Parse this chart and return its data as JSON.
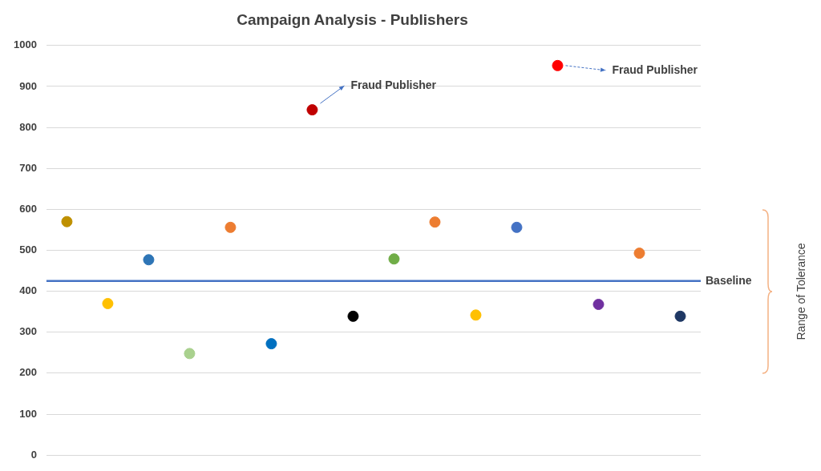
{
  "chart_data": {
    "type": "scatter",
    "title": "Campaign Analysis - Publishers",
    "categories": [
      null,
      null,
      null,
      null,
      null,
      null,
      null,
      null,
      null,
      null,
      null,
      null,
      null,
      null,
      null,
      null
    ],
    "values": [
      570,
      370,
      477,
      248,
      556,
      272,
      843,
      339,
      479,
      569,
      342,
      556,
      951,
      368,
      493,
      339
    ],
    "colors": [
      "#bf9000",
      "#ffc000",
      "#2e75b6",
      "#a9d18e",
      "#ed7d31",
      "#0070c0",
      "#c00000",
      "#000000",
      "#70ad47",
      "#ed7d31",
      "#ffc000",
      "#4472c4",
      "#ff0000",
      "#7030a0",
      "#ed7d31",
      "#1f3864"
    ],
    "ylim": [
      0,
      1000
    ],
    "yticks": [
      0,
      100,
      200,
      300,
      400,
      500,
      600,
      700,
      800,
      900,
      1000
    ],
    "grid": "y",
    "marker": "circle",
    "ref_lines": [
      {
        "axis": "y",
        "value": 425,
        "label": "Baseline",
        "color": "#4472c4"
      }
    ],
    "annotations": [
      "Fraud Publisher",
      "Fraud Publisher",
      "Range of Tolerance"
    ]
  }
}
